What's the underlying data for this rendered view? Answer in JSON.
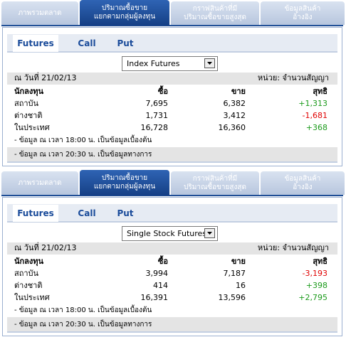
{
  "panels": [
    {
      "tabs": [
        [
          "ภาพรวมตลาด"
        ],
        [
          "ปริมาณซื้อขาย",
          "แยกตามกลุ่มผู้ลงทุน"
        ],
        [
          "กราฟสินค้าที่มี",
          "ปริมาณซื้อขายสูงสุด"
        ],
        [
          "ข้อมูลสินค้า",
          "อ้างอิง"
        ]
      ],
      "active_tab": 1,
      "subtabs": [
        "Futures",
        "Call",
        "Put"
      ],
      "active_subtab": 0,
      "select": "Index Futures",
      "date": "ณ วันที่ 21/02/13",
      "unit": "หน่วย: จำนวนสัญญา",
      "header": [
        "นักลงทุน",
        "ซื้อ",
        "ขาย",
        "สุทธิ"
      ],
      "rows": [
        [
          "สถาบัน",
          "7,695",
          "6,382",
          "+1,313"
        ],
        [
          "ต่างชาติ",
          "1,731",
          "3,412",
          "-1,681"
        ],
        [
          "ในประเทศ",
          "16,728",
          "16,360",
          "+368"
        ]
      ],
      "notes": [
        "- ข้อมูล ณ เวลา 18:00 น. เป็นข้อมูลเบื้องต้น",
        "- ข้อมูล ณ เวลา 20:30 น. เป็นข้อมูลทางการ"
      ]
    },
    {
      "tabs": [
        [
          "ภาพรวมตลาด"
        ],
        [
          "ปริมาณซื้อขาย",
          "แยกตามกลุ่มผู้ลงทุน"
        ],
        [
          "กราฟสินค้าที่มี",
          "ปริมาณซื้อขายสูงสุด"
        ],
        [
          "ข้อมูลสินค้า",
          "อ้างอิง"
        ]
      ],
      "active_tab": 1,
      "subtabs": [
        "Futures",
        "Call",
        "Put"
      ],
      "active_subtab": 0,
      "select": "Single Stock Futures",
      "date": "ณ วันที่ 21/02/13",
      "unit": "หน่วย: จำนวนสัญญา",
      "header": [
        "นักลงทุน",
        "ซื้อ",
        "ขาย",
        "สุทธิ"
      ],
      "rows": [
        [
          "สถาบัน",
          "3,994",
          "7,187",
          "-3,193"
        ],
        [
          "ต่างชาติ",
          "414",
          "16",
          "+398"
        ],
        [
          "ในประเทศ",
          "16,391",
          "13,596",
          "+2,795"
        ]
      ],
      "notes": [
        "- ข้อมูล ณ เวลา 18:00 น. เป็นข้อมูลเบื้องต้น",
        "- ข้อมูล ณ เวลา 20:30 น. เป็นข้อมูลทางการ"
      ]
    }
  ]
}
